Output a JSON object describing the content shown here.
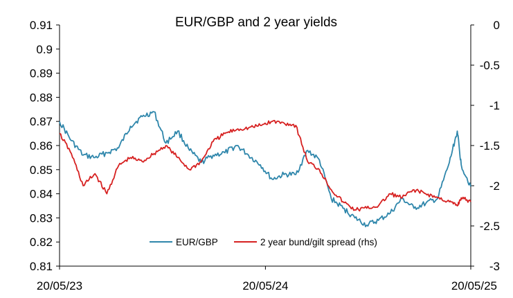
{
  "chart_data": {
    "type": "line",
    "title": "EUR/GBP and 2 year yields",
    "xlabel": "",
    "ylabel": "",
    "x_ticks": [
      "20/05/23",
      "20/05/24",
      "20/05/25"
    ],
    "ylim_left": [
      0.81,
      0.91
    ],
    "yticks_left": [
      "0.91",
      "0.9",
      "0.89",
      "0.88",
      "0.87",
      "0.86",
      "0.85",
      "0.84",
      "0.83",
      "0.82",
      "0.81"
    ],
    "ylim_right": [
      -3,
      0
    ],
    "yticks_right": [
      "0",
      "-0.5",
      "-1",
      "-1.5",
      "-2",
      "-2.5",
      "-3"
    ],
    "grid": false,
    "legend_position": "bottom-center",
    "colors": {
      "eurgbp": "#2E86AB",
      "spread": "#D62020"
    },
    "series": [
      {
        "name": "EUR/GBP",
        "axis": "left",
        "x": [
          "2023-05-20",
          "2023-06-10",
          "2023-07-01",
          "2023-07-22",
          "2023-08-12",
          "2023-09-02",
          "2023-09-23",
          "2023-10-14",
          "2023-11-04",
          "2023-11-25",
          "2023-12-16",
          "2024-01-06",
          "2024-01-27",
          "2024-02-17",
          "2024-03-09",
          "2024-03-30",
          "2024-04-20",
          "2024-05-11",
          "2024-06-01",
          "2024-06-22",
          "2024-07-13",
          "2024-08-03",
          "2024-08-24",
          "2024-09-14",
          "2024-10-05",
          "2024-10-26",
          "2024-11-16",
          "2024-12-07",
          "2024-12-28",
          "2025-01-18",
          "2025-02-08",
          "2025-03-01",
          "2025-03-22",
          "2025-04-12",
          "2025-04-26",
          "2025-05-03",
          "2025-05-20"
        ],
        "values": [
          0.87,
          0.862,
          0.856,
          0.855,
          0.857,
          0.859,
          0.868,
          0.872,
          0.874,
          0.861,
          0.866,
          0.858,
          0.853,
          0.856,
          0.857,
          0.86,
          0.856,
          0.852,
          0.846,
          0.848,
          0.848,
          0.858,
          0.854,
          0.838,
          0.834,
          0.83,
          0.827,
          0.829,
          0.832,
          0.838,
          0.834,
          0.836,
          0.838,
          0.853,
          0.866,
          0.852,
          0.843
        ]
      },
      {
        "name": "2 year bund/gilt spread (rhs)",
        "axis": "right",
        "x": [
          "2023-05-20",
          "2023-06-10",
          "2023-07-01",
          "2023-07-22",
          "2023-08-12",
          "2023-09-02",
          "2023-09-23",
          "2023-10-14",
          "2023-11-04",
          "2023-11-25",
          "2023-12-16",
          "2024-01-06",
          "2024-01-27",
          "2024-02-17",
          "2024-03-09",
          "2024-03-30",
          "2024-04-20",
          "2024-05-11",
          "2024-06-01",
          "2024-06-22",
          "2024-07-13",
          "2024-08-03",
          "2024-08-24",
          "2024-09-14",
          "2024-10-05",
          "2024-10-26",
          "2024-11-16",
          "2024-12-07",
          "2024-12-28",
          "2025-01-18",
          "2025-02-08",
          "2025-03-01",
          "2025-03-22",
          "2025-04-12",
          "2025-04-26",
          "2025-05-03",
          "2025-05-20"
        ],
        "values": [
          -1.35,
          -1.6,
          -2.0,
          -1.85,
          -2.1,
          -1.75,
          -1.65,
          -1.7,
          -1.6,
          -1.5,
          -1.65,
          -1.8,
          -1.7,
          -1.45,
          -1.35,
          -1.3,
          -1.28,
          -1.25,
          -1.2,
          -1.22,
          -1.25,
          -1.7,
          -1.8,
          -2.05,
          -2.2,
          -2.3,
          -2.28,
          -2.25,
          -2.1,
          -2.15,
          -2.05,
          -2.1,
          -2.15,
          -2.2,
          -2.25,
          -2.15,
          -2.2
        ]
      }
    ]
  }
}
